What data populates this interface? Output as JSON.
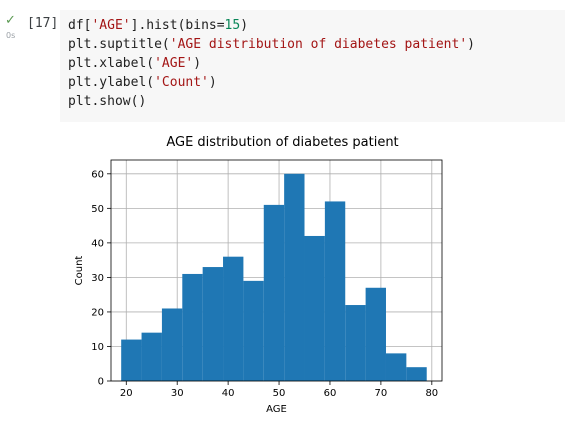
{
  "cell": {
    "status_icon": "check-icon",
    "exec_time": "0s",
    "exec_count": "[17]",
    "code": [
      [
        "df[",
        {
          "s": "'AGE'"
        },
        "].hist(bins=",
        {
          "n": "15"
        },
        ")"
      ],
      [
        "plt.suptitle(",
        {
          "s": "'AGE distribution of diabetes patient'"
        },
        ")"
      ],
      [
        "plt.xlabel(",
        {
          "s": "'AGE'"
        },
        ")"
      ],
      [
        "plt.ylabel(",
        {
          "s": "'Count'"
        },
        ")"
      ],
      [
        "plt.show()"
      ]
    ]
  },
  "colors": {
    "bar": "#1f77b4",
    "grid": "#b0b0b0",
    "string": "#a31515",
    "number": "#098658",
    "check": "#5b9a52"
  },
  "chart_data": {
    "type": "bar",
    "title": "AGE distribution of diabetes patient",
    "xlabel": "AGE",
    "ylabel": "Count",
    "xlim": [
      17,
      82
    ],
    "ylim": [
      0,
      64
    ],
    "xticks": [
      20,
      30,
      40,
      50,
      60,
      70,
      80
    ],
    "yticks": [
      0,
      10,
      20,
      30,
      40,
      50,
      60
    ],
    "grid": true,
    "bins": [
      {
        "x0": 19,
        "x1": 23,
        "value": 12
      },
      {
        "x0": 23,
        "x1": 27,
        "value": 14
      },
      {
        "x0": 27,
        "x1": 31,
        "value": 21
      },
      {
        "x0": 31,
        "x1": 35,
        "value": 31
      },
      {
        "x0": 35,
        "x1": 39,
        "value": 33
      },
      {
        "x0": 39,
        "x1": 43,
        "value": 36
      },
      {
        "x0": 43,
        "x1": 47,
        "value": 29
      },
      {
        "x0": 47,
        "x1": 51,
        "value": 51
      },
      {
        "x0": 51,
        "x1": 55,
        "value": 60
      },
      {
        "x0": 55,
        "x1": 59,
        "value": 42
      },
      {
        "x0": 59,
        "x1": 63,
        "value": 52
      },
      {
        "x0": 63,
        "x1": 67,
        "value": 22
      },
      {
        "x0": 67,
        "x1": 71,
        "value": 27
      },
      {
        "x0": 71,
        "x1": 75,
        "value": 8
      },
      {
        "x0": 75,
        "x1": 79,
        "value": 4
      }
    ]
  }
}
